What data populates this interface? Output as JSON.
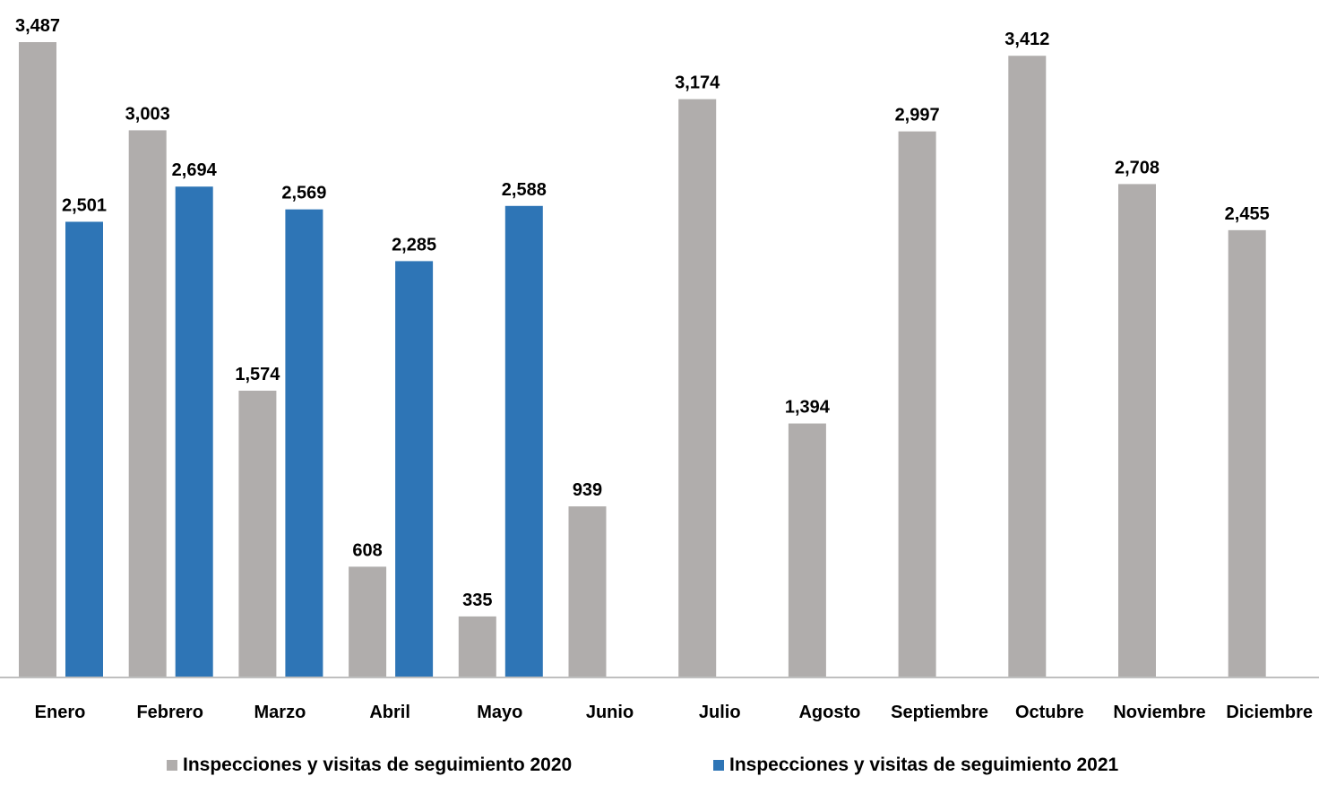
{
  "chart_data": {
    "type": "bar",
    "categories": [
      "Enero",
      "Febrero",
      "Marzo",
      "Abril",
      "Mayo",
      "Junio",
      "Julio",
      "Agosto",
      "Septiembre",
      "Octubre",
      "Noviembre",
      "Diciembre"
    ],
    "series": [
      {
        "name": "Inspecciones y visitas de seguimiento 2020",
        "color": "#B0ADAC",
        "values": [
          3487,
          3003,
          1574,
          608,
          335,
          939,
          3174,
          1394,
          2997,
          3412,
          2708,
          2455
        ],
        "labels": [
          "3,487",
          "3,003",
          "1,574",
          "608",
          "335",
          "939",
          "3,174",
          "1,394",
          "2,997",
          "3,412",
          "2,708",
          "2,455"
        ]
      },
      {
        "name": "Inspecciones y visitas de seguimiento 2021",
        "color": "#2E75B6",
        "values": [
          2501,
          2694,
          2569,
          2285,
          2588,
          null,
          null,
          null,
          null,
          null,
          null,
          null
        ],
        "labels": [
          "2,501",
          "2,694",
          "2,569",
          "2,285",
          "2,588",
          "",
          "",
          "",
          "",
          "",
          "",
          ""
        ]
      }
    ],
    "title": "",
    "xlabel": "",
    "ylabel": "",
    "ylim": [
      0,
      3487
    ],
    "grid": false,
    "legend": "bottom"
  }
}
